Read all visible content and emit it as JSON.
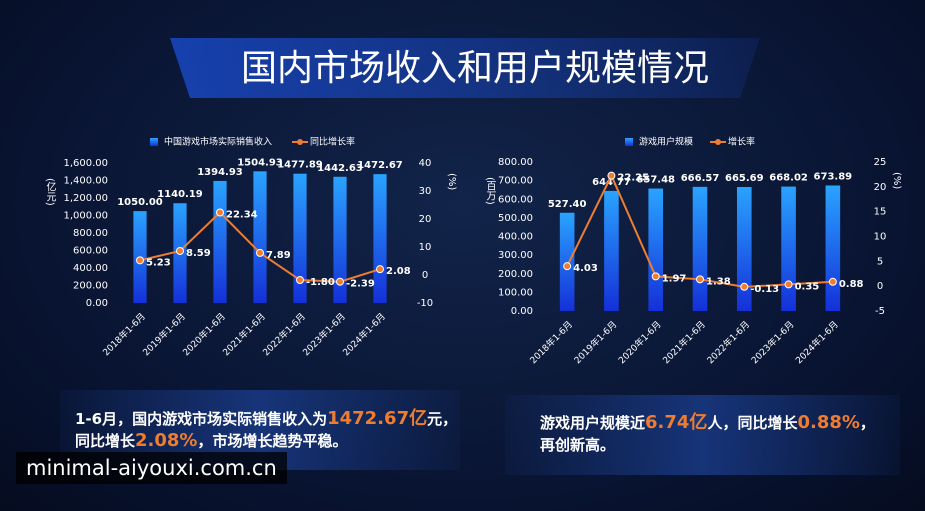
{
  "title": "国内市场收入和用户规模情况",
  "chart_data": [
    {
      "type": "combo",
      "ylabel": "(亿元)",
      "y2label": "(%)",
      "categories": [
        "2018年1-6月",
        "2019年1-6月",
        "2020年1-6月",
        "2021年1-6月",
        "2022年1-6月",
        "2023年1-6月",
        "2024年1-6月"
      ],
      "series": [
        {
          "name": "中国游戏市场实际销售收入",
          "kind": "bar",
          "color": "#1e7bff",
          "values": [
            1050.0,
            1140.19,
            1394.93,
            1504.93,
            1477.89,
            1442.63,
            1472.67
          ],
          "value_labels": [
            "1050.00",
            "1140.19",
            "1394.93",
            "1504.93",
            "1477.89",
            "1442.63",
            "1472.67"
          ]
        },
        {
          "name": "同比增长率",
          "kind": "line",
          "axis": "y2",
          "color": "#ee7d31",
          "values": [
            5.23,
            8.59,
            22.34,
            7.89,
            -1.8,
            -2.39,
            2.08
          ],
          "value_labels": [
            "5.23",
            "8.59",
            "22.34",
            "7.89",
            "-1.80",
            "-2.39",
            "2.08"
          ]
        }
      ],
      "ylim": [
        0,
        1600
      ],
      "yticks": [
        {
          "value": 0,
          "label": "0.00"
        },
        {
          "value": 200,
          "label": "200.00"
        },
        {
          "value": 400,
          "label": "400.00"
        },
        {
          "value": 600,
          "label": "600.00"
        },
        {
          "value": 800,
          "label": "800.00"
        },
        {
          "value": 1000,
          "label": "1,000.00"
        },
        {
          "value": 1200,
          "label": "1,200.00"
        },
        {
          "value": 1400,
          "label": "1,400.00"
        },
        {
          "value": 1600,
          "label": "1,600.00"
        }
      ],
      "y2lim": [
        -10,
        40
      ],
      "y2ticks": [
        -10,
        0,
        10,
        20,
        30,
        40
      ]
    },
    {
      "type": "combo",
      "ylabel": "(百万)",
      "y2label": "(%)",
      "categories": [
        "2018年1-6月",
        "2019年1-6月",
        "2020年1-6月",
        "2021年1-6月",
        "2022年1-6月",
        "2023年1-6月",
        "2024年1-6月"
      ],
      "series": [
        {
          "name": "游戏用户规模",
          "kind": "bar",
          "color": "#1e7bff",
          "values": [
            527.4,
            644.77,
            657.48,
            666.57,
            665.69,
            668.02,
            673.89
          ],
          "value_labels": [
            "527.40",
            "644.77",
            "657.48",
            "666.57",
            "665.69",
            "668.02",
            "673.89"
          ]
        },
        {
          "name": "增长率",
          "kind": "line",
          "axis": "y2",
          "color": "#ee7d31",
          "values": [
            4.03,
            22.25,
            1.97,
            1.38,
            -0.13,
            0.35,
            0.88
          ],
          "value_labels": [
            "4.03",
            "22.25",
            "1.97",
            "1.38",
            "-0.13",
            "0.35",
            "0.88"
          ]
        }
      ],
      "ylim": [
        0,
        800
      ],
      "yticks": [
        {
          "value": 0,
          "label": "0.00"
        },
        {
          "value": 100,
          "label": "100.00"
        },
        {
          "value": 200,
          "label": "200.00"
        },
        {
          "value": 300,
          "label": "300.00"
        },
        {
          "value": 400,
          "label": "400.00"
        },
        {
          "value": 500,
          "label": "500.00"
        },
        {
          "value": 600,
          "label": "600.00"
        },
        {
          "value": 700,
          "label": "700.00"
        },
        {
          "value": 800,
          "label": "800.00"
        }
      ],
      "y2lim": [
        -5,
        25
      ],
      "y2ticks": [
        -5,
        0,
        5,
        10,
        15,
        20,
        25
      ]
    }
  ],
  "summaries": [
    [
      [
        {
          "text": "1-6月，国内游戏市场实际销售收入为",
          "color": "#ffffff"
        },
        {
          "text": "1472.67亿",
          "color": "#ee7d31"
        },
        {
          "text": "元，",
          "color": "#ffffff"
        }
      ],
      [
        {
          "text": "同比增长",
          "color": "#ffffff"
        },
        {
          "text": "2.08%",
          "color": "#ee7d31"
        },
        {
          "text": "，市场增长趋势平稳。",
          "color": "#ffffff"
        }
      ]
    ],
    [
      [
        {
          "text": "游戏用户规模近",
          "color": "#ffffff"
        },
        {
          "text": "6.74亿",
          "color": "#ee7d31"
        },
        {
          "text": "人，同比增长",
          "color": "#ffffff"
        },
        {
          "text": "0.88%",
          "color": "#ee7d31"
        },
        {
          "text": "，",
          "color": "#ffffff"
        }
      ],
      [
        {
          "text": "再创新高。",
          "color": "#ffffff"
        }
      ]
    ]
  ],
  "watermark": "minimal-aiyouxi.com.cn"
}
